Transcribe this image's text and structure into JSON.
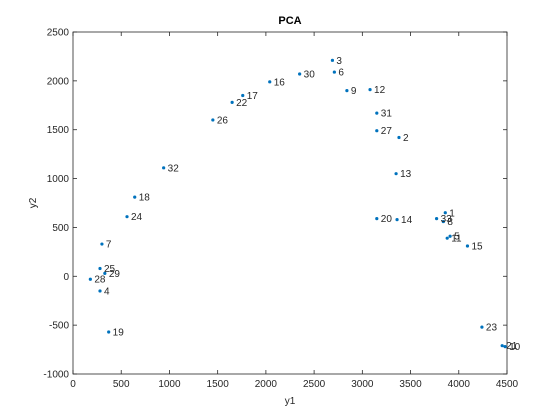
{
  "chart_data": {
    "type": "scatter",
    "title": "PCA",
    "xlabel": "y1",
    "ylabel": "y2",
    "xlim": [
      0,
      4500
    ],
    "ylim": [
      -1000,
      2500
    ],
    "xticks": [
      "0",
      "500",
      "1000",
      "1500",
      "2000",
      "2500",
      "3000",
      "3500",
      "4000",
      "4500"
    ],
    "yticks": [
      "-1000",
      "-500",
      "0",
      "500",
      "1000",
      "1500",
      "2000",
      "2500"
    ],
    "grid": false,
    "marker_color": "#0072BD",
    "points": [
      {
        "label": "1",
        "x": 3860,
        "y": 650
      },
      {
        "label": "2",
        "x": 3380,
        "y": 1420
      },
      {
        "label": "3",
        "x": 2690,
        "y": 2210
      },
      {
        "label": "4",
        "x": 280,
        "y": -150
      },
      {
        "label": "5",
        "x": 3910,
        "y": 410
      },
      {
        "label": "6",
        "x": 2710,
        "y": 2090
      },
      {
        "label": "7",
        "x": 300,
        "y": 330
      },
      {
        "label": "8",
        "x": 3840,
        "y": 560
      },
      {
        "label": "9",
        "x": 2840,
        "y": 1900
      },
      {
        "label": "10",
        "x": 4480,
        "y": -720
      },
      {
        "label": "11",
        "x": 3880,
        "y": 390
      },
      {
        "label": "12",
        "x": 3080,
        "y": 1910
      },
      {
        "label": "13",
        "x": 3350,
        "y": 1050
      },
      {
        "label": "14",
        "x": 3360,
        "y": 580
      },
      {
        "label": "15",
        "x": 4090,
        "y": 310
      },
      {
        "label": "16",
        "x": 2040,
        "y": 1990
      },
      {
        "label": "17",
        "x": 1760,
        "y": 1850
      },
      {
        "label": "18",
        "x": 640,
        "y": 810
      },
      {
        "label": "19",
        "x": 370,
        "y": -570
      },
      {
        "label": "20",
        "x": 3150,
        "y": 590
      },
      {
        "label": "21",
        "x": 4450,
        "y": -710
      },
      {
        "label": "22",
        "x": 1650,
        "y": 1780
      },
      {
        "label": "23",
        "x": 4240,
        "y": -520
      },
      {
        "label": "24",
        "x": 560,
        "y": 610
      },
      {
        "label": "25",
        "x": 280,
        "y": 80
      },
      {
        "label": "26",
        "x": 1450,
        "y": 1600
      },
      {
        "label": "27",
        "x": 3150,
        "y": 1490
      },
      {
        "label": "28",
        "x": 180,
        "y": -30
      },
      {
        "label": "29",
        "x": 330,
        "y": 30
      },
      {
        "label": "30",
        "x": 2350,
        "y": 2070
      },
      {
        "label": "31",
        "x": 3150,
        "y": 1670
      },
      {
        "label": "32",
        "x": 940,
        "y": 1110
      },
      {
        "label": "33",
        "x": 3770,
        "y": 590
      }
    ]
  }
}
